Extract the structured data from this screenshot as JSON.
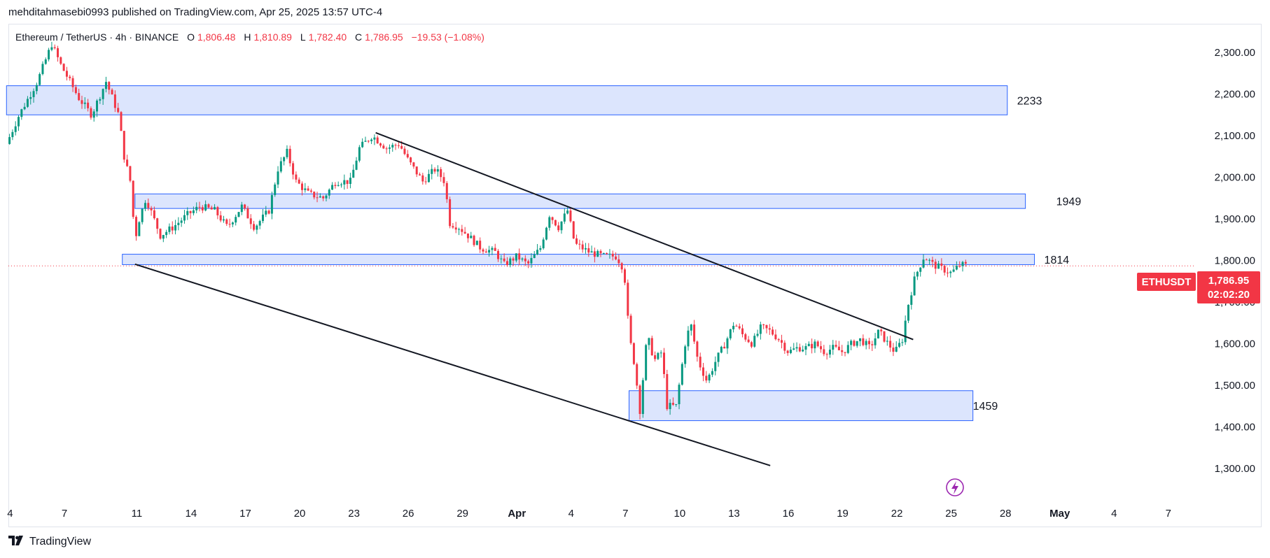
{
  "header": {
    "publisher_line": "mehditahmasebi0993 published on TradingView.com, Apr 25, 2025 13:57 UTC-4"
  },
  "legend": {
    "symbol": "Ethereum / TetherUS · 4h · BINANCE",
    "open_label": "O",
    "open": "1,806.48",
    "high_label": "H",
    "high": "1,810.89",
    "low_label": "L",
    "low": "1,782.40",
    "close_label": "C",
    "close": "1,786.95",
    "change": "−19.53 (−1.08%)"
  },
  "price_badge": {
    "ticker": "ETHUSDT",
    "price": "1,786.95",
    "countdown": "02:02:20",
    "color": "#f23645"
  },
  "footer": {
    "brand": "TradingView",
    "logo_icon": "tradingview-logo-icon"
  },
  "colors": {
    "up": "#089981",
    "down": "#f23645",
    "zone_fill": "#d6e0fd",
    "zone_border": "#2962ff",
    "trendline": "#131722"
  },
  "chart_data": {
    "type": "candlestick",
    "timeframe": "4h",
    "ylim": [
      1300,
      2340
    ],
    "y_ticks": [
      {
        "value": 2300,
        "label": "2,300.00"
      },
      {
        "value": 2200,
        "label": "2,200.00"
      },
      {
        "value": 2100,
        "label": "2,100.00"
      },
      {
        "value": 2000,
        "label": "2,000.00"
      },
      {
        "value": 1900,
        "label": "1,900.00"
      },
      {
        "value": 1800,
        "label": "1,800.00"
      },
      {
        "value": 1700,
        "label": "1,700.00"
      },
      {
        "value": 1600,
        "label": "1,600.00"
      },
      {
        "value": 1500,
        "label": "1,500.00"
      },
      {
        "value": 1400,
        "label": "1,400.00"
      },
      {
        "value": 1300,
        "label": "1,300.00"
      }
    ],
    "x_ticks": [
      {
        "day": 4,
        "label": "4"
      },
      {
        "day": 7,
        "label": "7"
      },
      {
        "day": 11,
        "label": "11"
      },
      {
        "day": 14,
        "label": "14"
      },
      {
        "day": 17,
        "label": "17"
      },
      {
        "day": 20,
        "label": "20"
      },
      {
        "day": 23,
        "label": "23"
      },
      {
        "day": 26,
        "label": "26"
      },
      {
        "day": 29,
        "label": "29"
      },
      {
        "day": 32,
        "label": "Apr"
      },
      {
        "day": 35,
        "label": "4"
      },
      {
        "day": 38,
        "label": "7"
      },
      {
        "day": 41,
        "label": "10"
      },
      {
        "day": 44,
        "label": "13"
      },
      {
        "day": 47,
        "label": "16"
      },
      {
        "day": 50,
        "label": "19"
      },
      {
        "day": 53,
        "label": "22"
      },
      {
        "day": 56,
        "label": "25"
      },
      {
        "day": 59,
        "label": "28"
      },
      {
        "day": 62,
        "label": "May"
      },
      {
        "day": 65,
        "label": "4"
      },
      {
        "day": 68,
        "label": "7"
      }
    ],
    "price_path": [
      [
        3.8,
        2080
      ],
      [
        4.5,
        2150
      ],
      [
        5.5,
        2230
      ],
      [
        6.3,
        2320
      ],
      [
        6.8,
        2270
      ],
      [
        7.8,
        2190
      ],
      [
        8.5,
        2150
      ],
      [
        9.3,
        2230
      ],
      [
        10.0,
        2150
      ],
      [
        10.3,
        2050
      ],
      [
        10.7,
        1980
      ],
      [
        10.9,
        1830
      ],
      [
        11.0,
        1880
      ],
      [
        11.5,
        1950
      ],
      [
        12.3,
        1860
      ],
      [
        13.0,
        1880
      ],
      [
        13.8,
        1910
      ],
      [
        14.5,
        1930
      ],
      [
        15.3,
        1920
      ],
      [
        16.0,
        1880
      ],
      [
        16.8,
        1930
      ],
      [
        17.5,
        1880
      ],
      [
        18.3,
        1920
      ],
      [
        18.8,
        2020
      ],
      [
        19.3,
        2060
      ],
      [
        19.8,
        1990
      ],
      [
        20.5,
        1960
      ],
      [
        21.3,
        1950
      ],
      [
        22.0,
        1990
      ],
      [
        22.8,
        1990
      ],
      [
        23.3,
        2070
      ],
      [
        24.0,
        2100
      ],
      [
        24.8,
        2070
      ],
      [
        25.5,
        2080
      ],
      [
        26.0,
        2040
      ],
      [
        26.8,
        1990
      ],
      [
        27.5,
        2020
      ],
      [
        28.0,
        1990
      ],
      [
        28.3,
        1890
      ],
      [
        28.8,
        1880
      ],
      [
        29.3,
        1860
      ],
      [
        30.0,
        1830
      ],
      [
        30.8,
        1820
      ],
      [
        31.3,
        1790
      ],
      [
        32.0,
        1810
      ],
      [
        32.6,
        1790
      ],
      [
        33.3,
        1830
      ],
      [
        33.8,
        1910
      ],
      [
        34.3,
        1880
      ],
      [
        34.8,
        1920
      ],
      [
        35.2,
        1840
      ],
      [
        35.6,
        1830
      ],
      [
        36.0,
        1820
      ],
      [
        36.8,
        1810
      ],
      [
        37.5,
        1810
      ],
      [
        37.9,
        1780
      ],
      [
        38.0,
        1740
      ],
      [
        38.2,
        1620
      ],
      [
        38.5,
        1550
      ],
      [
        38.8,
        1440
      ],
      [
        39.2,
        1620
      ],
      [
        39.6,
        1560
      ],
      [
        40.0,
        1580
      ],
      [
        40.3,
        1450
      ],
      [
        40.8,
        1450
      ],
      [
        41.3,
        1600
      ],
      [
        41.6,
        1650
      ],
      [
        42.0,
        1560
      ],
      [
        42.5,
        1510
      ],
      [
        43.0,
        1560
      ],
      [
        43.5,
        1600
      ],
      [
        44.0,
        1650
      ],
      [
        44.5,
        1620
      ],
      [
        45.0,
        1600
      ],
      [
        45.5,
        1640
      ],
      [
        46.0,
        1630
      ],
      [
        46.5,
        1610
      ],
      [
        47.0,
        1580
      ],
      [
        47.5,
        1590
      ],
      [
        48.0,
        1590
      ],
      [
        48.5,
        1600
      ],
      [
        49.0,
        1580
      ],
      [
        49.5,
        1590
      ],
      [
        50.0,
        1580
      ],
      [
        50.5,
        1600
      ],
      [
        51.0,
        1610
      ],
      [
        51.5,
        1590
      ],
      [
        52.0,
        1630
      ],
      [
        52.5,
        1600
      ],
      [
        52.9,
        1580
      ],
      [
        53.3,
        1610
      ],
      [
        53.6,
        1690
      ],
      [
        54.0,
        1760
      ],
      [
        54.5,
        1810
      ],
      [
        55.0,
        1790
      ],
      [
        55.5,
        1780
      ],
      [
        56.0,
        1770
      ],
      [
        56.5,
        1790
      ],
      [
        56.9,
        1787
      ]
    ],
    "zones": [
      {
        "day_start": 3.8,
        "day_end": 59.1,
        "low": 2150,
        "high": 2220,
        "label": "2233"
      },
      {
        "day_start": 10.9,
        "day_end": 60.1,
        "low": 1925,
        "high": 1960,
        "label": "1949"
      },
      {
        "day_start": 10.2,
        "day_end": 60.6,
        "low": 1790,
        "high": 1815,
        "label": "1814"
      },
      {
        "day_start": 38.2,
        "day_end": 57.2,
        "low": 1415,
        "high": 1487,
        "label": "1459"
      }
    ],
    "trendlines": [
      {
        "from": [
          24.2,
          2107
        ],
        "to": [
          53.9,
          1610
        ]
      },
      {
        "from": [
          10.9,
          1791
        ],
        "to": [
          46.0,
          1307
        ]
      }
    ],
    "current_price": 1786.95
  }
}
